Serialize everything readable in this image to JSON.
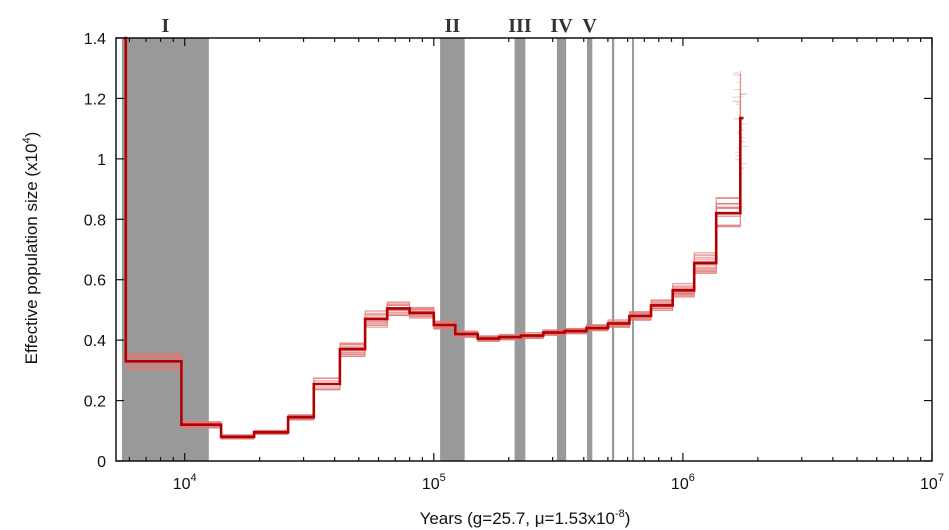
{
  "chart_data": {
    "type": "line",
    "xlabel": {
      "prefix": "Years (g=25.7, μ=1.53x10",
      "exp": "-8",
      "suffix": ")"
    },
    "ylabel": {
      "prefix": "Effective population size (x10",
      "exp": "4",
      "suffix": ")"
    },
    "x_scale": "log",
    "xlim": [
      5300,
      10000000
    ],
    "ylim": [
      0,
      1.4
    ],
    "x_ticks": [
      {
        "value": 10000,
        "base": "10",
        "exp": "4"
      },
      {
        "value": 100000,
        "base": "10",
        "exp": "5"
      },
      {
        "value": 1000000,
        "base": "10",
        "exp": "6"
      },
      {
        "value": 10000000,
        "base": "10",
        "exp": "7"
      }
    ],
    "y_ticks": [
      {
        "value": 0,
        "label": "0"
      },
      {
        "value": 0.2,
        "label": "0.2"
      },
      {
        "value": 0.4,
        "label": "0.4"
      },
      {
        "value": 0.6,
        "label": "0.6"
      },
      {
        "value": 0.8,
        "label": "0.8"
      },
      {
        "value": 1.0,
        "label": "1"
      },
      {
        "value": 1.2,
        "label": "1.2"
      },
      {
        "value": 1.4,
        "label": "1.4"
      }
    ],
    "bands": [
      {
        "label": "I",
        "from": 5600,
        "to": 12500
      },
      {
        "label": "II",
        "from": 106000,
        "to": 133000
      },
      {
        "label": "III",
        "from": 211000,
        "to": 233000
      },
      {
        "label": "IV",
        "from": 312000,
        "to": 340000
      },
      {
        "label": "V",
        "from": 412000,
        "to": 433000
      },
      {
        "label": "",
        "from": 519000,
        "to": 530000
      },
      {
        "label": "",
        "from": 625000,
        "to": 636000
      }
    ],
    "band_color": "#999999",
    "series": [
      {
        "color": "#b30000",
        "step": true,
        "x": [
          5700,
          5800,
          9700,
          14000,
          19000,
          26000,
          33000,
          42000,
          53000,
          65000,
          80000,
          100000,
          122000,
          150000,
          183000,
          224000,
          275000,
          335000,
          410000,
          500000,
          610000,
          745000,
          910000,
          1110000,
          1360000,
          1700000
        ],
        "y": [
          1.4,
          0.33,
          0.12,
          0.08,
          0.095,
          0.145,
          0.255,
          0.37,
          0.47,
          0.505,
          0.49,
          0.45,
          0.42,
          0.405,
          0.41,
          0.415,
          0.425,
          0.43,
          0.44,
          0.455,
          0.48,
          0.515,
          0.565,
          0.655,
          0.82,
          1.135
        ]
      }
    ],
    "bootstrap_color": "#e07a7a",
    "bootstrap_spread": [
      0.03,
      0.03,
      0.012,
      0.008,
      0.008,
      0.01,
      0.02,
      0.025,
      0.03,
      0.025,
      0.02,
      0.015,
      0.012,
      0.01,
      0.01,
      0.01,
      0.01,
      0.01,
      0.012,
      0.014,
      0.016,
      0.02,
      0.025,
      0.035,
      0.06,
      0.17
    ],
    "bootstrap_count": 40
  }
}
